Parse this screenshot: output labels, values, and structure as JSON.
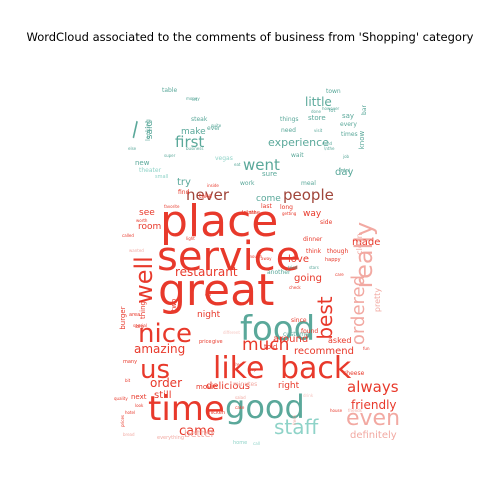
{
  "chart_data": {
    "type": "wordcloud",
    "title": "WordCloud associated to the comments of business from 'Shopping' category",
    "colors": {
      "red": "#e8392b",
      "teal": "#5aa89a",
      "light_teal": "#8fd3c8",
      "brown": "#a0453a",
      "pink": "#f2a9a2",
      "cyan": "#2bb3b3",
      "light_pink": "#f6c6c1"
    },
    "words": [
      {
        "text": "place",
        "weight": 44,
        "color": "red"
      },
      {
        "text": "service",
        "weight": 40,
        "color": "red"
      },
      {
        "text": "great",
        "weight": 44,
        "color": "red"
      },
      {
        "text": "food",
        "weight": 34,
        "color": "teal"
      },
      {
        "text": "like",
        "weight": 30,
        "color": "red"
      },
      {
        "text": "back",
        "weight": 30,
        "color": "red"
      },
      {
        "text": "good",
        "weight": 32,
        "color": "teal"
      },
      {
        "text": "time",
        "weight": 34,
        "color": "red"
      },
      {
        "text": "nice",
        "weight": 26,
        "color": "red"
      },
      {
        "text": "us",
        "weight": 26,
        "color": "red"
      },
      {
        "text": "well",
        "weight": 24,
        "color": "red"
      },
      {
        "text": "really",
        "weight": 24,
        "color": "pink"
      },
      {
        "text": "best",
        "weight": 20,
        "color": "red"
      },
      {
        "text": "staff",
        "weight": 20,
        "color": "light_teal"
      },
      {
        "text": "even",
        "weight": 22,
        "color": "pink"
      },
      {
        "text": "ordered",
        "weight": 18,
        "color": "pink"
      },
      {
        "text": "much",
        "weight": 17,
        "color": "red"
      },
      {
        "text": "always",
        "weight": 15,
        "color": "red"
      },
      {
        "text": "first",
        "weight": 15,
        "color": "teal"
      },
      {
        "text": "went",
        "weight": 15,
        "color": "teal"
      },
      {
        "text": "never",
        "weight": 15,
        "color": "brown"
      },
      {
        "text": "people",
        "weight": 15,
        "color": "brown"
      },
      {
        "text": "came",
        "weight": 13,
        "color": "red"
      },
      {
        "text": "amazing",
        "weight": 12,
        "color": "red"
      },
      {
        "text": "restaurant",
        "weight": 12,
        "color": "red"
      },
      {
        "text": "friendly",
        "weight": 12,
        "color": "red"
      },
      {
        "text": "order",
        "weight": 12,
        "color": "red"
      },
      {
        "text": "experience",
        "weight": 11,
        "color": "teal"
      },
      {
        "text": "little",
        "weight": 12,
        "color": "teal"
      },
      {
        "text": "definitely",
        "weight": 10,
        "color": "pink"
      },
      {
        "text": "better",
        "weight": 10,
        "color": "pink"
      },
      {
        "text": "recommend",
        "weight": 10,
        "color": "red"
      },
      {
        "text": "around",
        "weight": 10,
        "color": "red"
      },
      {
        "text": "delicious",
        "weight": 10,
        "color": "red"
      },
      {
        "text": "still",
        "weight": 10,
        "color": "red"
      },
      {
        "text": "going",
        "weight": 10,
        "color": "red"
      },
      {
        "text": "love",
        "weight": 10,
        "color": "red"
      },
      {
        "text": "made",
        "weight": 10,
        "color": "red"
      },
      {
        "text": "try",
        "weight": 10,
        "color": "teal"
      },
      {
        "text": "day",
        "weight": 10,
        "color": "teal"
      },
      {
        "text": "make",
        "weight": 9,
        "color": "teal"
      },
      {
        "text": "said",
        "weight": 9,
        "color": "teal"
      },
      {
        "text": "right",
        "weight": 9,
        "color": "red"
      },
      {
        "text": "night",
        "weight": 9,
        "color": "red"
      },
      {
        "text": "come",
        "weight": 9,
        "color": "teal"
      },
      {
        "text": "way",
        "weight": 9,
        "color": "red"
      },
      {
        "text": "see",
        "weight": 9,
        "color": "red"
      },
      {
        "text": "room",
        "weight": 9,
        "color": "red"
      },
      {
        "text": "asked",
        "weight": 8,
        "color": "red"
      },
      {
        "text": "pretty",
        "weight": 8,
        "color": "pink"
      },
      {
        "text": "clean",
        "weight": 8,
        "color": "pink"
      },
      {
        "text": "store",
        "weight": 7,
        "color": "teal"
      },
      {
        "text": "new",
        "weight": 7,
        "color": "teal"
      },
      {
        "text": "know",
        "weight": 7,
        "color": "teal"
      },
      {
        "text": "two",
        "weight": 7,
        "color": "red"
      },
      {
        "text": "told",
        "weight": 7,
        "color": "red"
      },
      {
        "text": "say",
        "weight": 7,
        "color": "teal"
      },
      {
        "text": "sure",
        "weight": 7,
        "color": "teal"
      },
      {
        "text": "work",
        "weight": 6,
        "color": "teal"
      },
      {
        "text": "need",
        "weight": 6,
        "color": "teal"
      },
      {
        "text": "wait",
        "weight": 6,
        "color": "teal"
      },
      {
        "text": "ever",
        "weight": 6,
        "color": "teal"
      },
      {
        "text": "steak",
        "weight": 6,
        "color": "teal"
      },
      {
        "text": "table",
        "weight": 6,
        "color": "teal"
      },
      {
        "text": "town",
        "weight": 6,
        "color": "teal"
      },
      {
        "text": "things",
        "weight": 6,
        "color": "teal"
      },
      {
        "text": "every",
        "weight": 6,
        "color": "teal"
      },
      {
        "text": "meal",
        "weight": 6,
        "color": "teal"
      },
      {
        "text": "times",
        "weight": 6,
        "color": "teal"
      },
      {
        "text": "vegas",
        "weight": 6,
        "color": "light_teal"
      },
      {
        "text": "theater",
        "weight": 6,
        "color": "light_teal"
      },
      {
        "text": "looking",
        "weight": 6,
        "color": "teal"
      },
      {
        "text": "bar",
        "weight": 6,
        "color": "teal"
      },
      {
        "text": "next",
        "weight": 7,
        "color": "red"
      },
      {
        "text": "burger",
        "weight": 7,
        "color": "red"
      },
      {
        "text": "thing",
        "weight": 7,
        "color": "red"
      },
      {
        "text": "movie",
        "weight": 7,
        "color": "red"
      },
      {
        "text": "minutes",
        "weight": 6,
        "color": "pink"
      },
      {
        "text": "customer",
        "weight": 6,
        "color": "teal"
      },
      {
        "text": "cheese",
        "weight": 6,
        "color": "red"
      },
      {
        "text": "think",
        "weight": 6,
        "color": "red"
      },
      {
        "text": "since",
        "weight": 6,
        "color": "red"
      },
      {
        "text": "found",
        "weight": 6,
        "color": "red"
      },
      {
        "text": "side",
        "weight": 6,
        "color": "red"
      },
      {
        "text": "though",
        "weight": 6,
        "color": "red"
      },
      {
        "text": "dinner",
        "weight": 6,
        "color": "red"
      },
      {
        "text": "happy",
        "weight": 5,
        "color": "red"
      },
      {
        "text": "another",
        "weight": 6,
        "color": "teal"
      },
      {
        "text": "price",
        "weight": 5,
        "color": "red"
      },
      {
        "text": "chicken",
        "weight": 5,
        "color": "red"
      },
      {
        "text": "home",
        "weight": 5,
        "color": "light_teal"
      },
      {
        "text": "everything",
        "weight": 5,
        "color": "pink"
      },
      {
        "text": "take",
        "weight": 6,
        "color": "red"
      },
      {
        "text": "find",
        "weight": 6,
        "color": "red"
      },
      {
        "text": "last",
        "weight": 6,
        "color": "red"
      },
      {
        "text": "long",
        "weight": 6,
        "color": "red"
      },
      {
        "text": "many",
        "weight": 5,
        "color": "red"
      },
      {
        "text": "area",
        "weight": 5,
        "color": "red"
      },
      {
        "text": "big",
        "weight": 5,
        "color": "red"
      },
      {
        "text": "hotel",
        "weight": 4,
        "color": "red"
      },
      {
        "text": "quality",
        "weight": 4,
        "color": "red"
      },
      {
        "text": "prices",
        "weight": 4,
        "color": "red"
      },
      {
        "text": "called",
        "weight": 4,
        "color": "red"
      },
      {
        "text": "worth",
        "weight": 4,
        "color": "red"
      },
      {
        "text": "favorite",
        "weight": 4,
        "color": "red"
      },
      {
        "text": "wanted",
        "weight": 4,
        "color": "pink"
      },
      {
        "text": "give",
        "weight": 5,
        "color": "red"
      },
      {
        "text": "fresh",
        "weight": 4,
        "color": "pink"
      },
      {
        "text": "fun",
        "weight": 4,
        "color": "red"
      },
      {
        "text": "check",
        "weight": 4,
        "color": "red"
      },
      {
        "text": "care",
        "weight": 4,
        "color": "red"
      },
      {
        "text": "however",
        "weight": 4,
        "color": "teal"
      },
      {
        "text": "done",
        "weight": 4,
        "color": "teal"
      },
      {
        "text": "lot",
        "weight": 5,
        "color": "teal"
      },
      {
        "text": "visit",
        "weight": 4,
        "color": "teal"
      },
      {
        "text": "money",
        "weight": 4,
        "color": "teal"
      },
      {
        "text": "small",
        "weight": 5,
        "color": "light_teal"
      },
      {
        "text": "super",
        "weight": 4,
        "color": "teal"
      },
      {
        "text": "quite",
        "weight": 4,
        "color": "teal"
      },
      {
        "text": "business",
        "weight": 4,
        "color": "teal"
      },
      {
        "text": "eat",
        "weight": 4,
        "color": "teal"
      },
      {
        "text": "job",
        "weight": 4,
        "color": "teal"
      },
      {
        "text": "else",
        "weight": 4,
        "color": "teal"
      },
      {
        "text": "tried",
        "weight": 4,
        "color": "teal"
      },
      {
        "text": "stars",
        "weight": 4,
        "color": "teal"
      },
      {
        "text": "let",
        "weight": 4,
        "color": "teal"
      },
      {
        "text": "salad",
        "weight": 4,
        "color": "pink"
      },
      {
        "text": "free",
        "weight": 4,
        "color": "red"
      },
      {
        "text": "top",
        "weight": 4,
        "color": "red"
      },
      {
        "text": "look",
        "weight": 4,
        "color": "red"
      },
      {
        "text": "bit",
        "weight": 4,
        "color": "red"
      },
      {
        "text": "different",
        "weight": 4,
        "color": "light_pink"
      },
      {
        "text": "drink",
        "weight": 4,
        "color": "light_pink"
      },
      {
        "text": "special",
        "weight": 4,
        "color": "red"
      },
      {
        "text": "away",
        "weight": 4,
        "color": "red"
      },
      {
        "text": "old",
        "weight": 4,
        "color": "red"
      },
      {
        "text": "mind",
        "weight": 4,
        "color": "teal"
      },
      {
        "text": "call",
        "weight": 4,
        "color": "light_teal"
      },
      {
        "text": "bread",
        "weight": 4,
        "color": "pink"
      },
      {
        "text": "house",
        "weight": 4,
        "color": "red"
      },
      {
        "text": "friends",
        "weight": 4,
        "color": "pink"
      },
      {
        "text": "inside",
        "weight": 4,
        "color": "red"
      },
      {
        "text": "getting",
        "weight": 4,
        "color": "red"
      },
      {
        "text": "cake",
        "weight": 4,
        "color": "red"
      },
      {
        "text": "enough",
        "weight": 4,
        "color": "red"
      },
      {
        "text": "light",
        "weight": 4,
        "color": "red"
      },
      {
        "text": "\\",
        "weight": 20,
        "color": "teal"
      },
      {
        "text": "\\n\\nthe",
        "weight": 5,
        "color": "red"
      },
      {
        "text": "\\n\\ni",
        "weight": 5,
        "color": "teal"
      },
      {
        "text": "\\nthe",
        "weight": 4,
        "color": "teal"
      },
      {
        "text": "\\n\\nthe",
        "weight": 4,
        "color": "red"
      }
    ]
  }
}
